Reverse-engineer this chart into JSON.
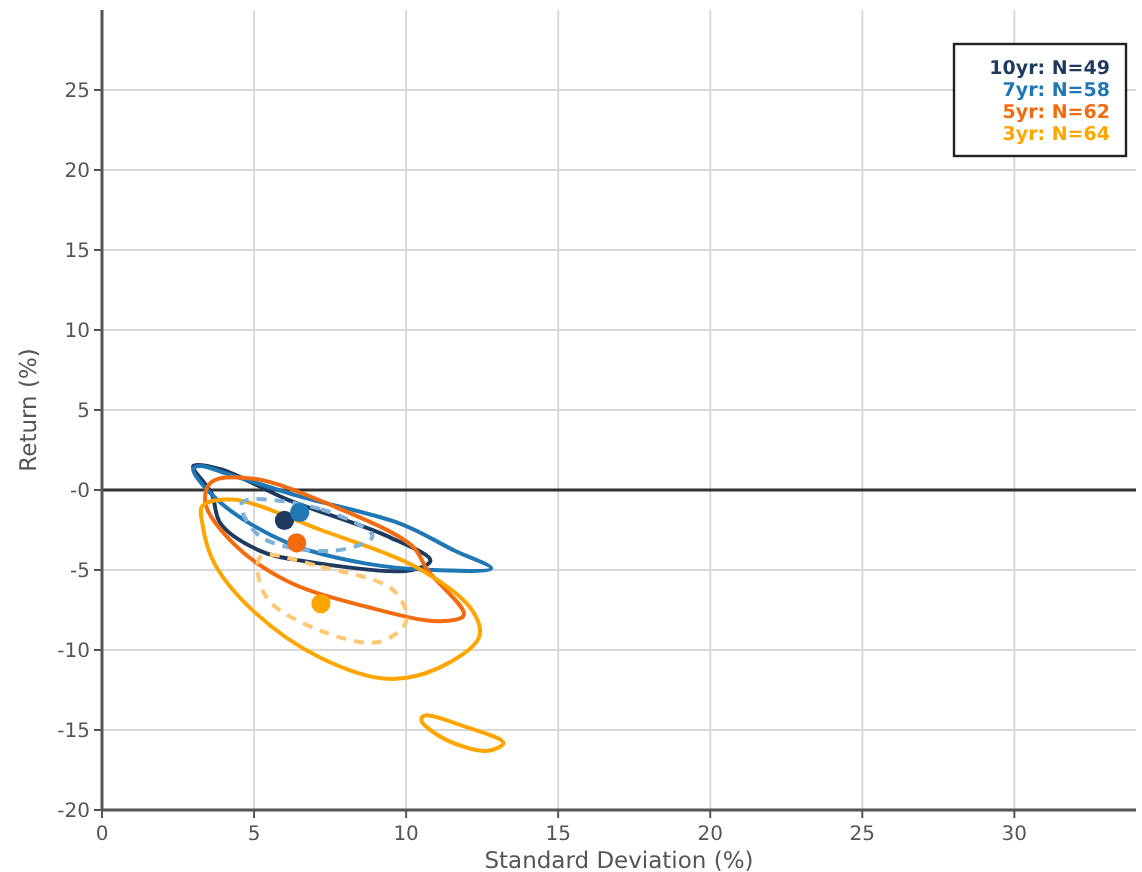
{
  "chart_data": {
    "type": "scatter",
    "xlabel": "Standard Deviation (%)",
    "ylabel": "Return (%)",
    "xlim": [
      0,
      34
    ],
    "xticks": [
      0,
      5,
      10,
      15,
      20,
      25,
      30
    ],
    "ylim": [
      -20,
      30
    ],
    "yticks": [
      -20,
      -15,
      -10,
      -5,
      {
        "value": 0,
        "label": "-0"
      },
      5,
      10,
      15,
      20,
      25
    ],
    "grid": true,
    "legend": "top right",
    "marker": "circle",
    "ref_lines": [
      {
        "axis": "y",
        "value": 0,
        "color": "#333333"
      }
    ],
    "series": [
      {
        "name": "10yr: N=49",
        "color": "#1f3a5f",
        "x": [
          6.0
        ],
        "values": [
          -1.9
        ]
      },
      {
        "name": "7yr: N=58",
        "color": "#1f78b4",
        "x": [
          6.5
        ],
        "values": [
          -1.4
        ]
      },
      {
        "name": "5yr: N=62",
        "color": "#f26b0f",
        "x": [
          6.4
        ],
        "values": [
          -3.3
        ]
      },
      {
        "name": "3yr: N=64",
        "color": "#ffa500",
        "x": [
          7.2
        ],
        "values": [
          -7.1
        ]
      }
    ]
  }
}
